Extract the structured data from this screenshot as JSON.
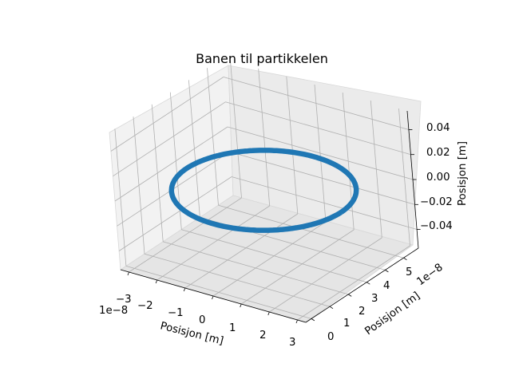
{
  "chart_data": {
    "type": "line",
    "projection": "3d",
    "title": "Banen til partikkelen",
    "xlabel": "Posisjon [m]",
    "ylabel": "Posisjon [m]",
    "zlabel": "Posisjon [m]",
    "x_offset_text": "1e−8",
    "y_offset_text": "1e−8",
    "x_tick_labels": [
      "−3",
      "−2",
      "−1",
      "0",
      "1",
      "2",
      "3"
    ],
    "y_tick_labels": [
      "0",
      "1",
      "2",
      "3",
      "4",
      "5"
    ],
    "z_tick_labels": [
      "−0.04",
      "−0.02",
      "0.00",
      "0.02",
      "0.04"
    ],
    "xlim": [
      -3.3,
      3.3
    ],
    "ylim": [
      -0.3,
      5.8
    ],
    "zlim": [
      -0.055,
      0.055
    ],
    "grid": true,
    "series_color": "#1f77b4",
    "orbit": {
      "shape": "circle",
      "center": [
        0,
        2.75
      ],
      "radius": 2.75,
      "z": 0
    }
  }
}
